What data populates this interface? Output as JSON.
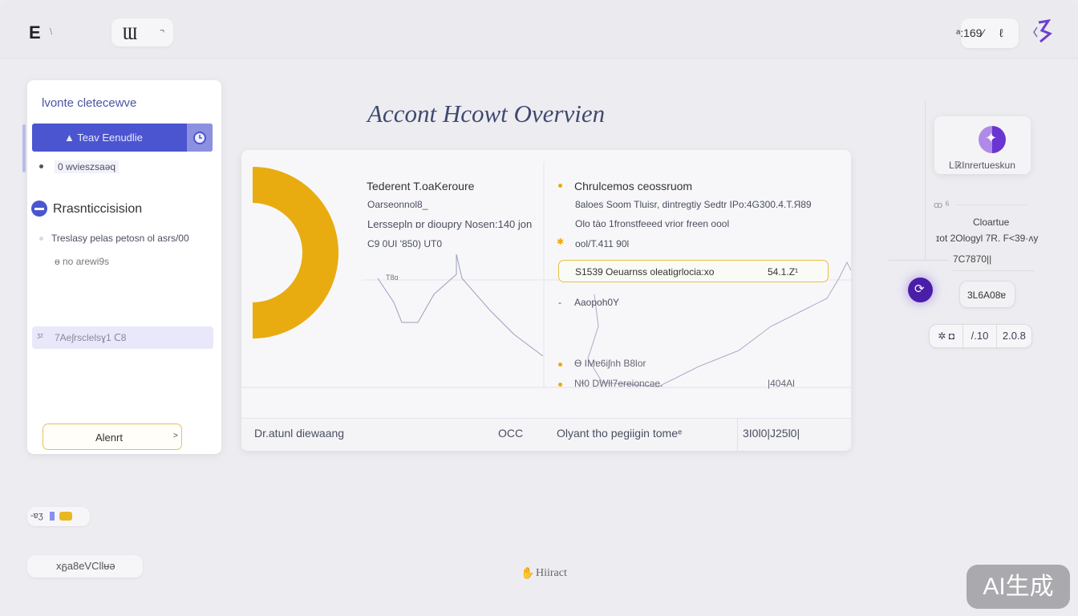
{
  "header": {
    "menu_label": "E",
    "menu_suffix": "\\",
    "logo_text": "Ɯ",
    "logo_caret": "¬",
    "status_value": "ᵃ:169⁄",
    "status_icon": "user-icon",
    "brand_icon": "brand-icon"
  },
  "page_title": "Accont Hcowt Overvien",
  "sidebar": {
    "heading": "lvonte cletecewve",
    "active_item": "▲ Teav Eenudlie",
    "active_icon": "clock-icon",
    "sub_item": "0 wvieszsaəq",
    "section_title": "Rrasnticcisision",
    "section_text": "Treslasy pelas petosn ol asrs/00",
    "section_sub": "ɵ no arewi9s",
    "highlight_item": "7Aeʃrsclelsɣ1 ᑕ8",
    "button_label": "Alenrt",
    "button_chevron": ">"
  },
  "main": {
    "left_title": "Tederent T.oaKeroure",
    "left_lines": [
      "Oarseonnol8_",
      "Lerssepln ɒr dioupry Nosen:140 jon",
      "C9 0UI  '850) UT0"
    ],
    "chart_tick": "T8ɑ",
    "right_title": "Chrulcemos ceossruom",
    "right_lines": [
      "8aloes Soom Tluisr, dintregtiy Sedtr IPo:4G300.4.T.Я89",
      "Olo tào  1fronstfeeed vrior freen oool",
      "ool/T.411 90l"
    ],
    "highlight_text": "S1539 Oeuarnss oleatigrlocia:xo",
    "highlight_value": "54.1.Z¹",
    "dash_item": "Aaopoh0Y",
    "legend": [
      "Ɵ IMɐ6iʃnh B8lor",
      "Nɬ0 DWll7ereioncəe.",
      "|404Al"
    ],
    "footer_left": "Dr.atunl diewaang",
    "footer_mid_prefix": "OCC",
    "footer_mid": "Olyant tho pegiigin tomeᵉ",
    "footer_value": "3I0l0|J25l0|",
    "accent_yellow": "#e8ac10",
    "accent_indigo": "#4b55cf"
  },
  "right_panel": {
    "card_label": "Lℝ̷Inrertueskun",
    "card_icon": "star-logo-icon",
    "small_label": "ꝏ ⸹",
    "title": "Cloartue",
    "subtitle": "ɪot 2Ologyl 7R. F<39·ʌy",
    "field_value": "7C7870||",
    "fab_icon": "refresh-icon",
    "badge_value": "3L6A08ɐ",
    "seg": [
      "✲ ◘",
      "/.10",
      "2.0.8"
    ]
  },
  "bottom": {
    "legend_label": "-ɐʒ",
    "chip_label": "xᵷa8eVCllᵾə",
    "center_label": "Hiiract",
    "center_icon": "hand-icon"
  },
  "watermark": "AI生成"
}
